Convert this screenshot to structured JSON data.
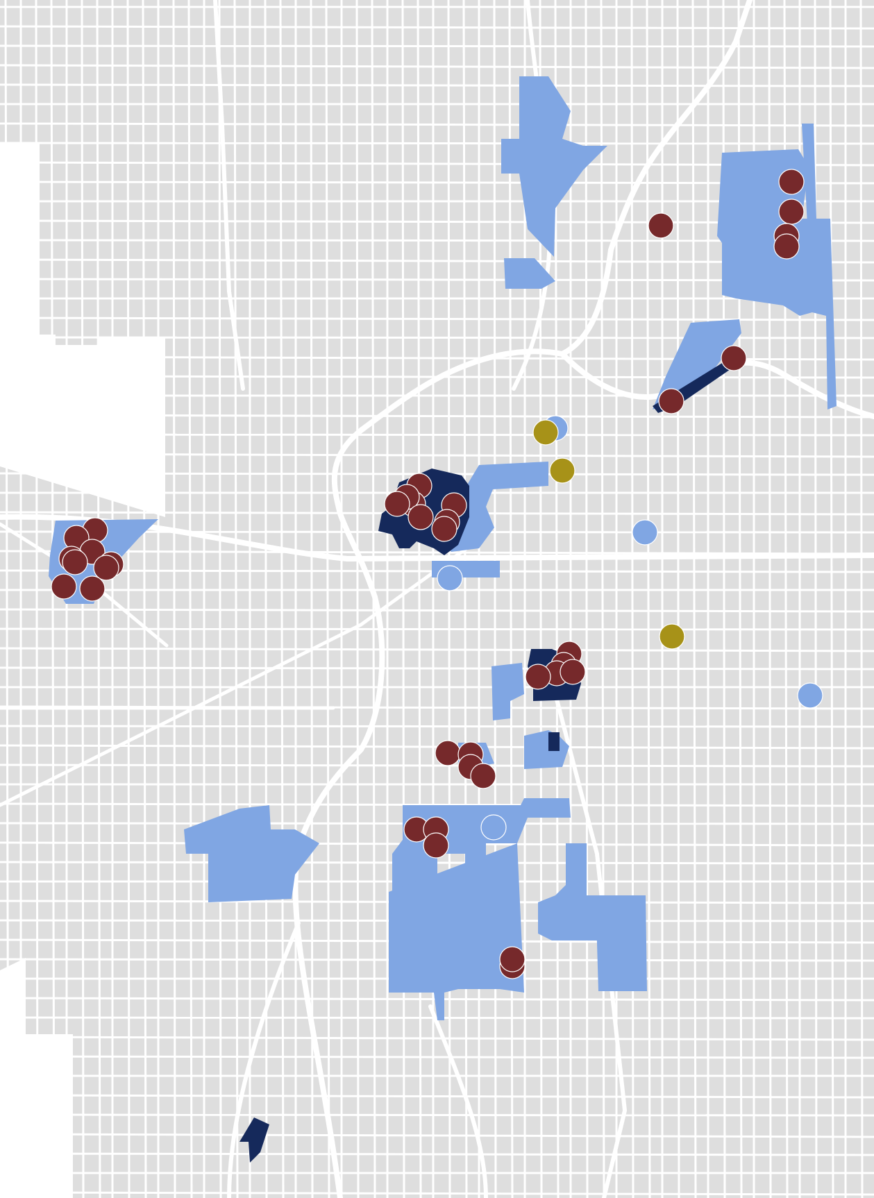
{
  "colors": {
    "background": "#ffffff",
    "land": "#dedede",
    "roads": "#ffffff",
    "parcel_light": "#80a6e3",
    "parcel_dark": "#15295b",
    "marker_red": "#76292b",
    "marker_gold": "#a79218",
    "marker_light": "#80a6e3"
  },
  "legend": {},
  "markers_summary": {
    "red_count": 37,
    "gold_count": 3,
    "light_blue_count": 5
  }
}
